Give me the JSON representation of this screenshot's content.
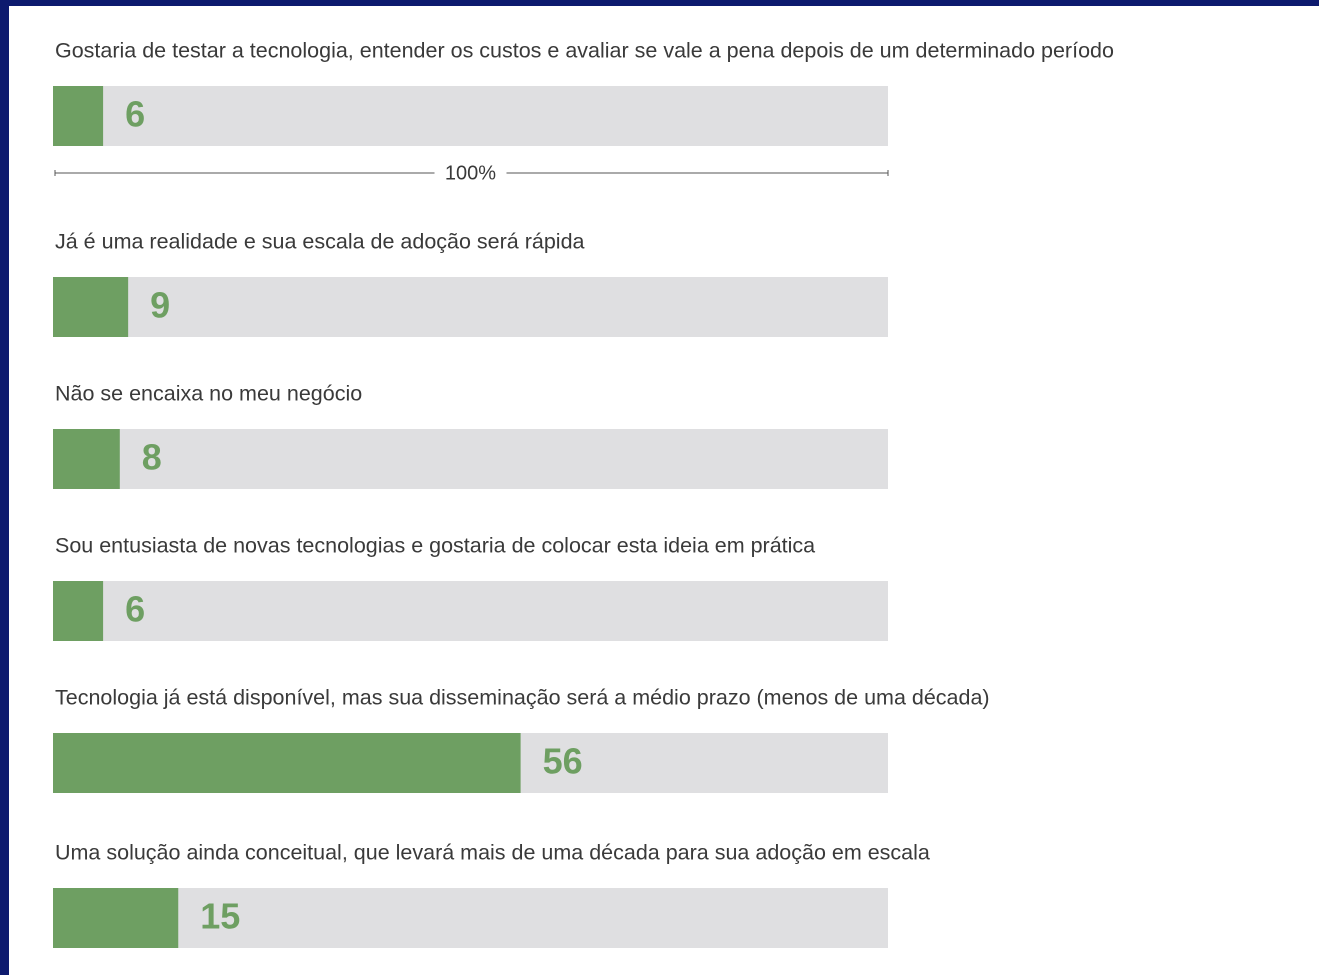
{
  "chart_data": {
    "type": "bar",
    "orientation": "horizontal",
    "categories": [
      "Gostaria de testar a tecnologia, entender os custos e avaliar se vale a pena depois de um determinado período",
      "Já é uma realidade e sua escala de adoção será rápida",
      "Não se encaixa no meu negócio",
      "Sou entusiasta de novas tecnologias e gostaria de colocar esta ideia em prática",
      "Tecnologia já está disponível, mas sua disseminação será a médio prazo (menos de uma década)",
      "Uma solução ainda conceitual, que levará mais de uma década para sua adoção em escala"
    ],
    "values": [
      6,
      9,
      8,
      6,
      56,
      15
    ],
    "xlim": [
      0,
      100
    ],
    "scale_label": "100%",
    "color": "#6e9f62",
    "track_color": "#dfdfe1",
    "label_color": "#6e9f62"
  }
}
